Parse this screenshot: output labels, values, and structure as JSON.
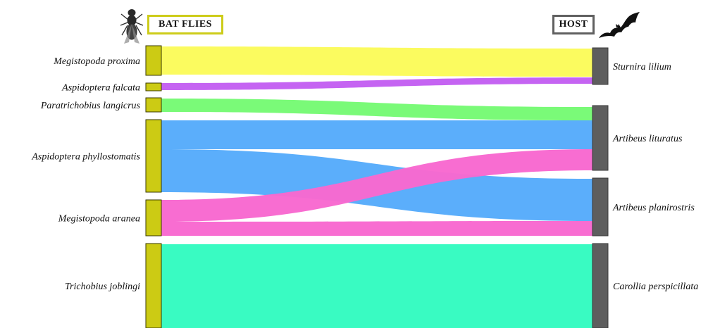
{
  "headers": {
    "bat_flies": "BAT FLIES",
    "host": "HOST"
  },
  "colors": {
    "fly_node": "#cccb14",
    "host_node": "#5e5e5e",
    "node_outline": "#3a3a00"
  },
  "icons": {
    "fly": "bat-fly-icon",
    "bat": "bat-icon"
  },
  "bat_flies": [
    "Megistopoda proxima",
    "Aspidoptera falcata",
    "Paratrichobius langicrus",
    "Aspidoptera phyllostomatis",
    "Megistopoda aranea",
    "Trichobius joblingi"
  ],
  "hosts": [
    "Sturnira lilium",
    "Artibeus lituratus",
    "Artibeus planirostris",
    "Carollia perspicillata"
  ],
  "links": [
    {
      "from": 0,
      "to": 0,
      "color": "#fbfb5a"
    },
    {
      "from": 1,
      "to": 0,
      "color": "#c35ff2"
    },
    {
      "from": 2,
      "to": 1,
      "color": "#76fa74"
    },
    {
      "from": 3,
      "to": 1,
      "color": "#56abfb"
    },
    {
      "from": 3,
      "to": 2,
      "color": "#56abfb"
    },
    {
      "from": 4,
      "to": 1,
      "color": "#f868d0"
    },
    {
      "from": 4,
      "to": 2,
      "color": "#f868d0"
    },
    {
      "from": 5,
      "to": 3,
      "color": "#33fbc0"
    }
  ]
}
